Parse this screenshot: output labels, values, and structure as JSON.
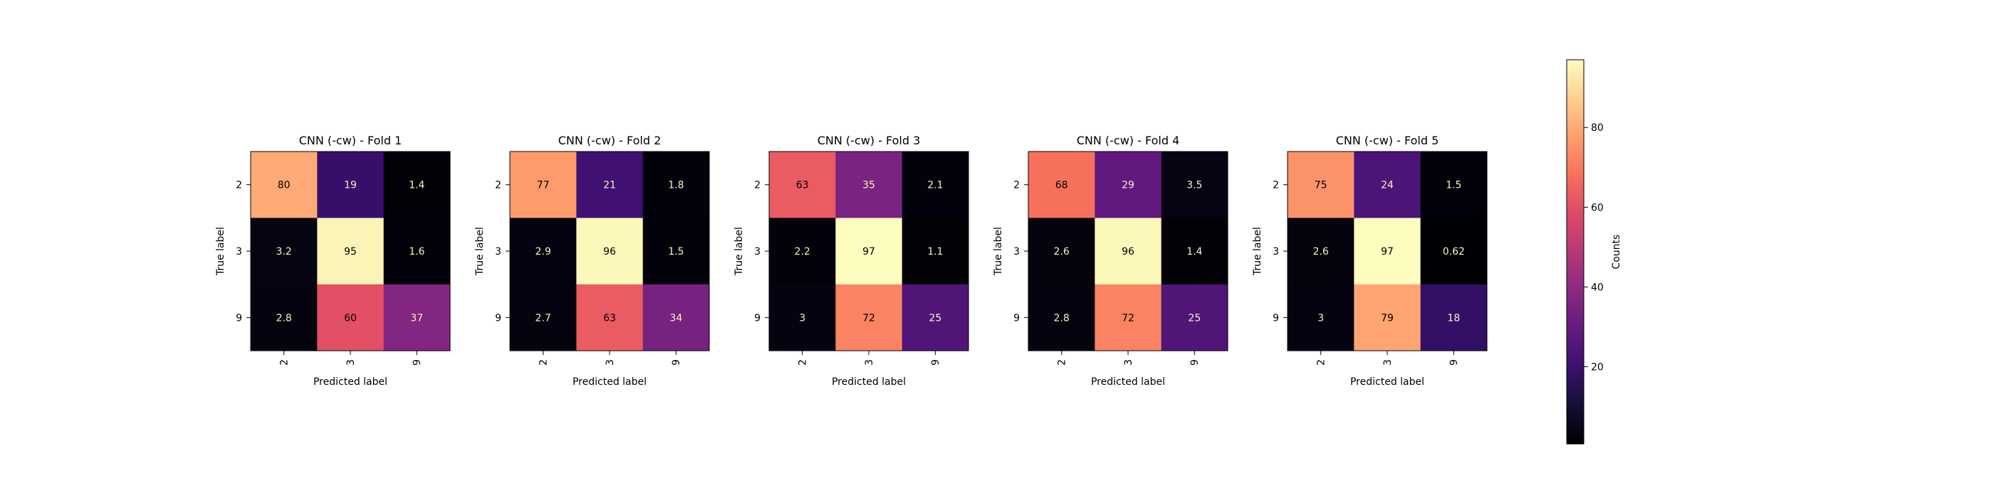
{
  "chart_data": {
    "type": "heatmap",
    "colormap": "magma",
    "shared_labels": [
      "2",
      "3",
      "9"
    ],
    "xlabel": "Predicted label",
    "ylabel": "True label",
    "colorbar": {
      "label": "Counts",
      "range": [
        0.62,
        97
      ],
      "ticks": [
        20,
        40,
        60,
        80
      ]
    },
    "panels": [
      {
        "title": "CNN (-cw) - Fold 1",
        "x_categories": [
          "2",
          "3",
          "9"
        ],
        "y_categories": [
          "2",
          "3",
          "9"
        ],
        "matrix": [
          [
            80,
            19,
            1.4
          ],
          [
            3.2,
            95,
            1.6
          ],
          [
            2.8,
            60,
            37
          ]
        ],
        "display": [
          [
            "80",
            "19",
            "1.4"
          ],
          [
            "3.2",
            "95",
            "1.6"
          ],
          [
            "2.8",
            "60",
            "37"
          ]
        ]
      },
      {
        "title": "CNN (-cw) - Fold 2",
        "x_categories": [
          "2",
          "3",
          "9"
        ],
        "y_categories": [
          "2",
          "3",
          "9"
        ],
        "matrix": [
          [
            77,
            21,
            1.8
          ],
          [
            2.9,
            96,
            1.5
          ],
          [
            2.7,
            63,
            34
          ]
        ],
        "display": [
          [
            "77",
            "21",
            "1.8"
          ],
          [
            "2.9",
            "96",
            "1.5"
          ],
          [
            "2.7",
            "63",
            "34"
          ]
        ]
      },
      {
        "title": "CNN (-cw) - Fold 3",
        "x_categories": [
          "2",
          "3",
          "9"
        ],
        "y_categories": [
          "2",
          "3",
          "9"
        ],
        "matrix": [
          [
            63,
            35,
            2.1
          ],
          [
            2.2,
            97,
            1.1
          ],
          [
            3,
            72,
            25
          ]
        ],
        "display": [
          [
            "63",
            "35",
            "2.1"
          ],
          [
            "2.2",
            "97",
            "1.1"
          ],
          [
            "3",
            "72",
            "25"
          ]
        ]
      },
      {
        "title": "CNN (-cw) - Fold 4",
        "x_categories": [
          "2",
          "3",
          "9"
        ],
        "y_categories": [
          "2",
          "3",
          "9"
        ],
        "matrix": [
          [
            68,
            29,
            3.5
          ],
          [
            2.6,
            96,
            1.4
          ],
          [
            2.8,
            72,
            25
          ]
        ],
        "display": [
          [
            "68",
            "29",
            "3.5"
          ],
          [
            "2.6",
            "96",
            "1.4"
          ],
          [
            "2.8",
            "72",
            "25"
          ]
        ]
      },
      {
        "title": "CNN (-cw) - Fold 5",
        "x_categories": [
          "2",
          "3",
          "9"
        ],
        "y_categories": [
          "2",
          "3",
          "9"
        ],
        "matrix": [
          [
            75,
            24,
            1.5
          ],
          [
            2.6,
            97,
            0.62
          ],
          [
            3,
            79,
            18
          ]
        ],
        "display": [
          [
            "75",
            "24",
            "1.5"
          ],
          [
            "2.6",
            "97",
            "0.62"
          ],
          [
            "3",
            "79",
            "18"
          ]
        ]
      }
    ]
  }
}
